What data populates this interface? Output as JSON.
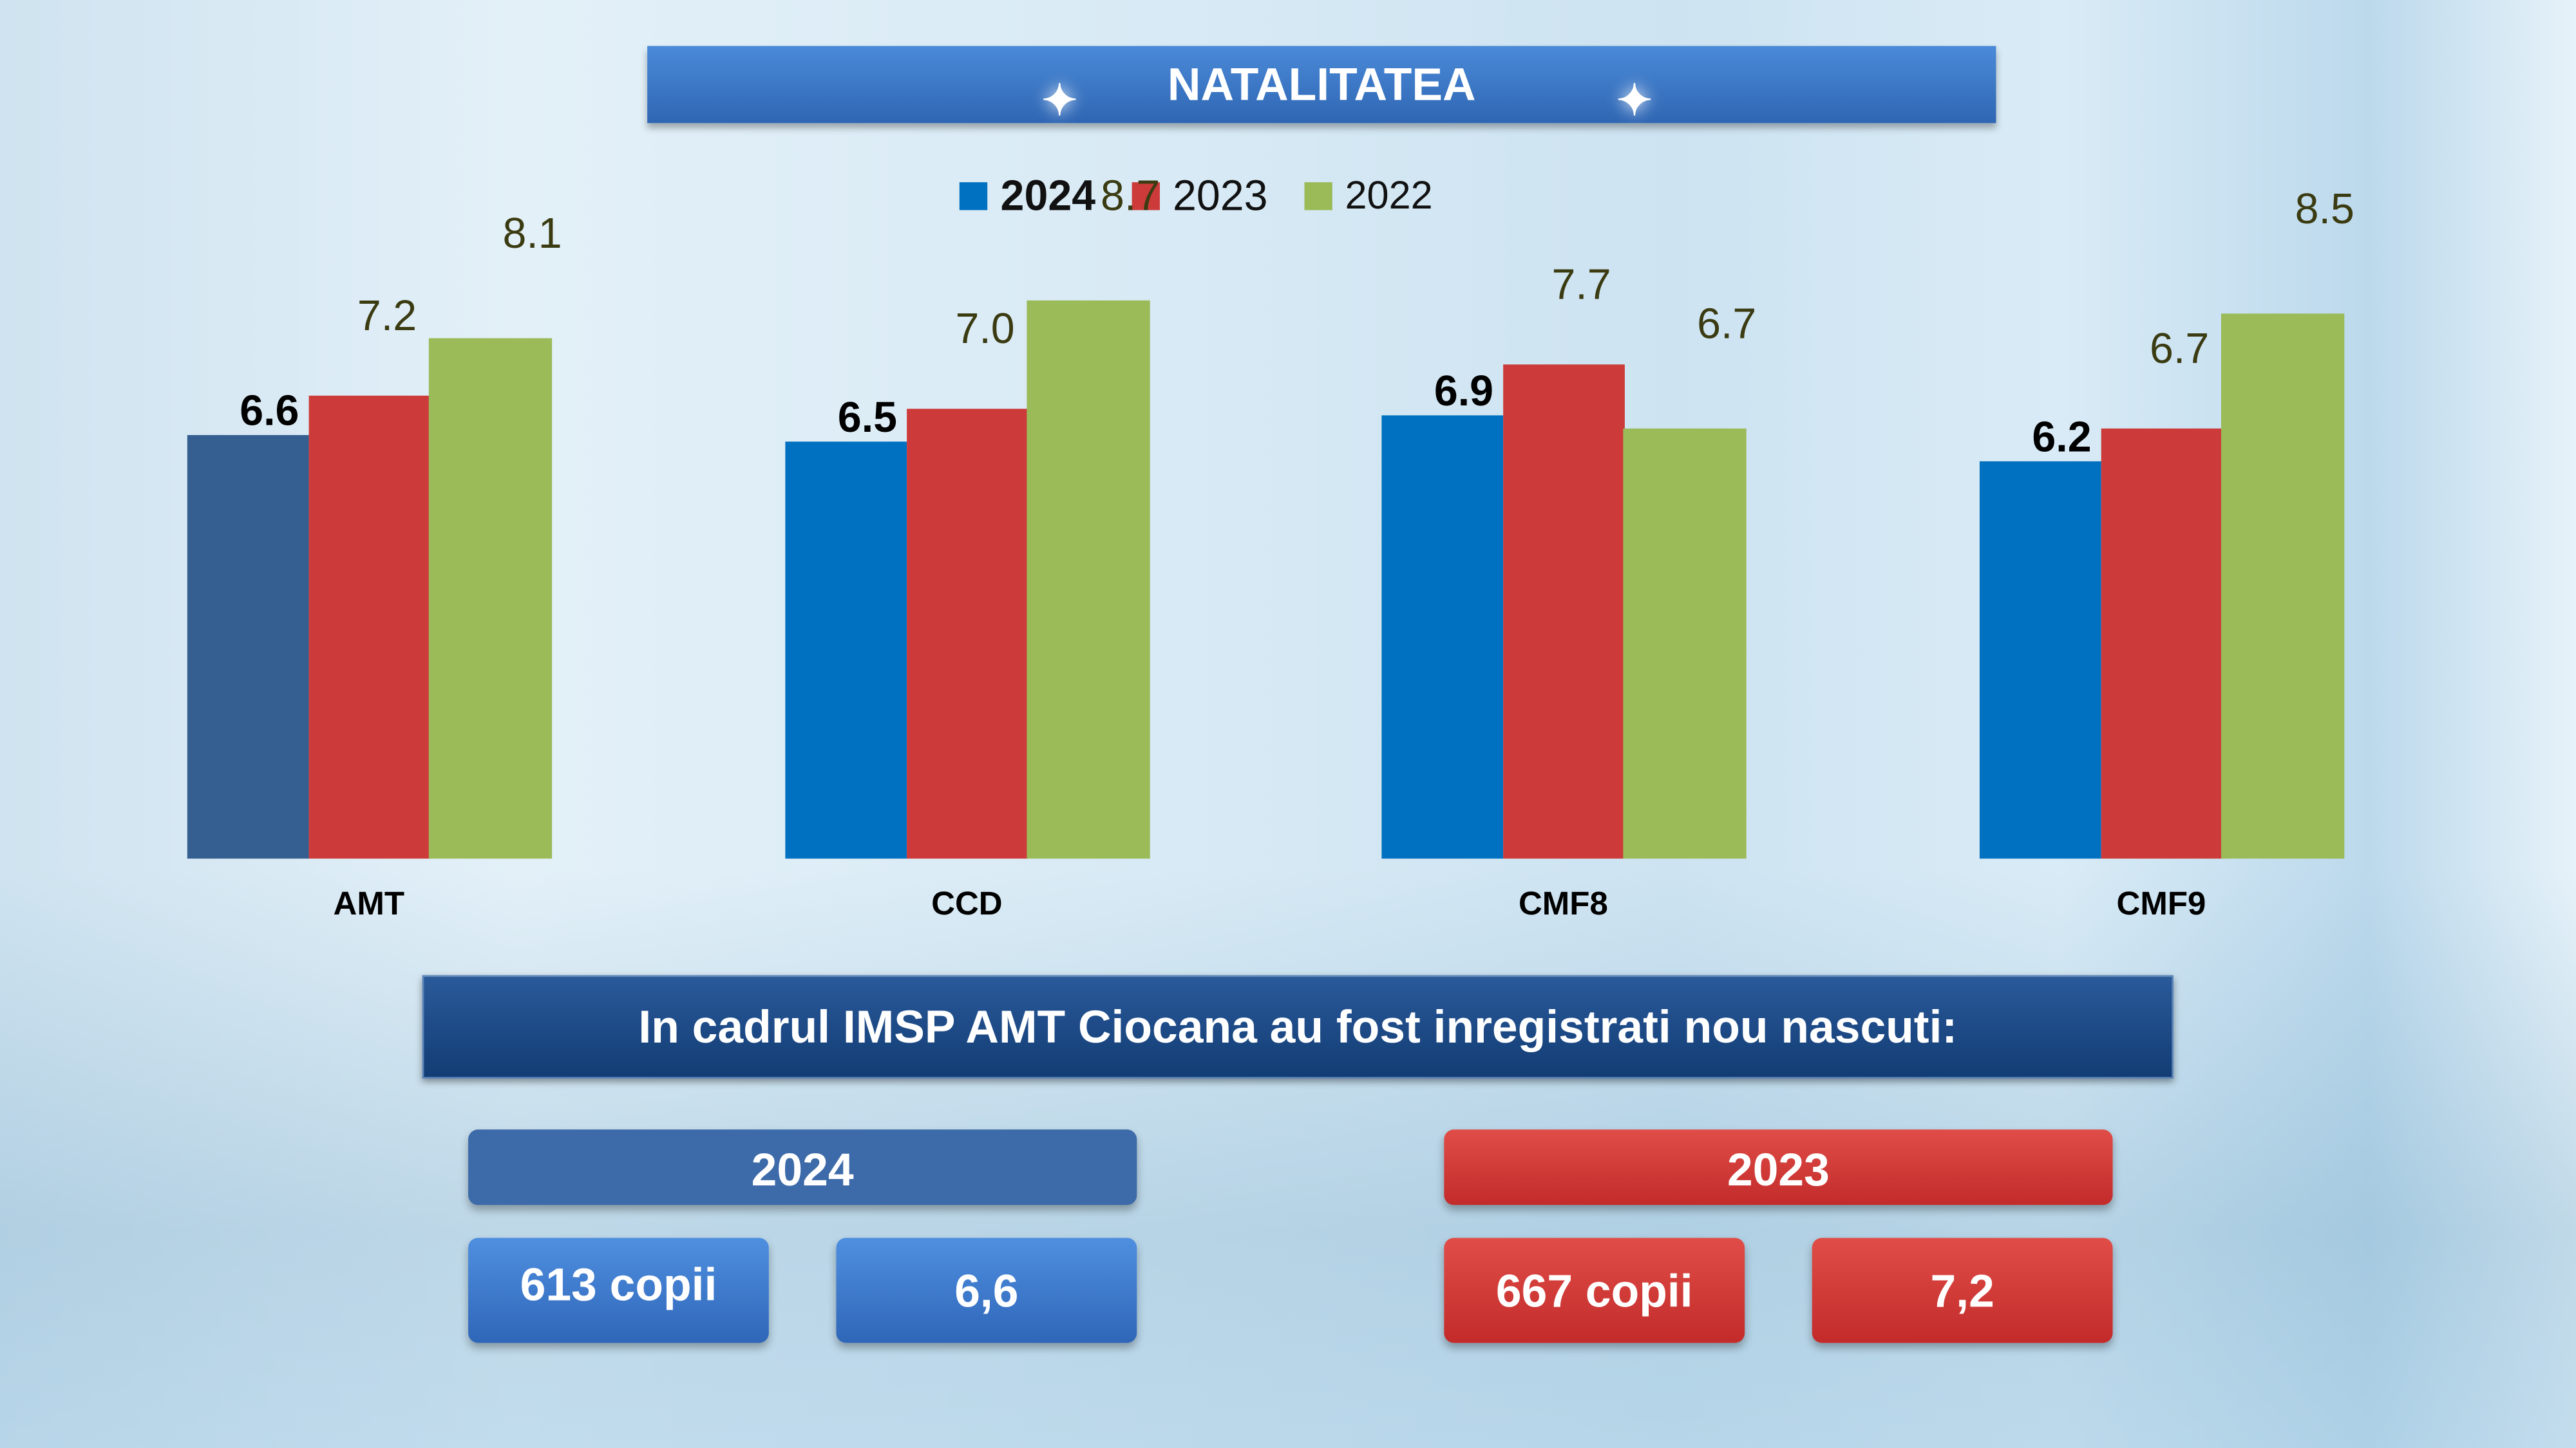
{
  "title": "NATALITATEA",
  "chart_data": {
    "type": "bar",
    "categories": [
      "AMT",
      "CCD",
      "CMF8",
      "CMF9"
    ],
    "series": [
      {
        "name": "2024",
        "values": [
          6.6,
          6.5,
          6.9,
          6.2
        ],
        "color": "#0070c0"
      },
      {
        "name": "2023",
        "values": [
          7.2,
          7.0,
          7.7,
          6.7
        ],
        "color": "#cc3b3a"
      },
      {
        "name": "2022",
        "values": [
          8.1,
          8.7,
          6.7,
          8.5
        ],
        "color": "#9bbb59"
      }
    ],
    "labels": [
      [
        "6.6",
        "6.5",
        "6.9",
        "6.2"
      ],
      [
        "7.2",
        "7.0",
        "7.7",
        "6.7"
      ],
      [
        "8.1",
        "8.7",
        "6.7",
        "8.5"
      ]
    ],
    "ylim": [
      0,
      9
    ],
    "legend": "top-center",
    "first_bar_color": "#365f91"
  },
  "summary": {
    "heading": "In cadrul IMSP AMT Ciocana au fost inregistrati nou nascuti:",
    "y2024": {
      "year": "2024",
      "count": "613 copii",
      "rate": "6,6"
    },
    "y2023": {
      "year": "2023",
      "count": "667 copii",
      "rate": "7,2"
    }
  }
}
